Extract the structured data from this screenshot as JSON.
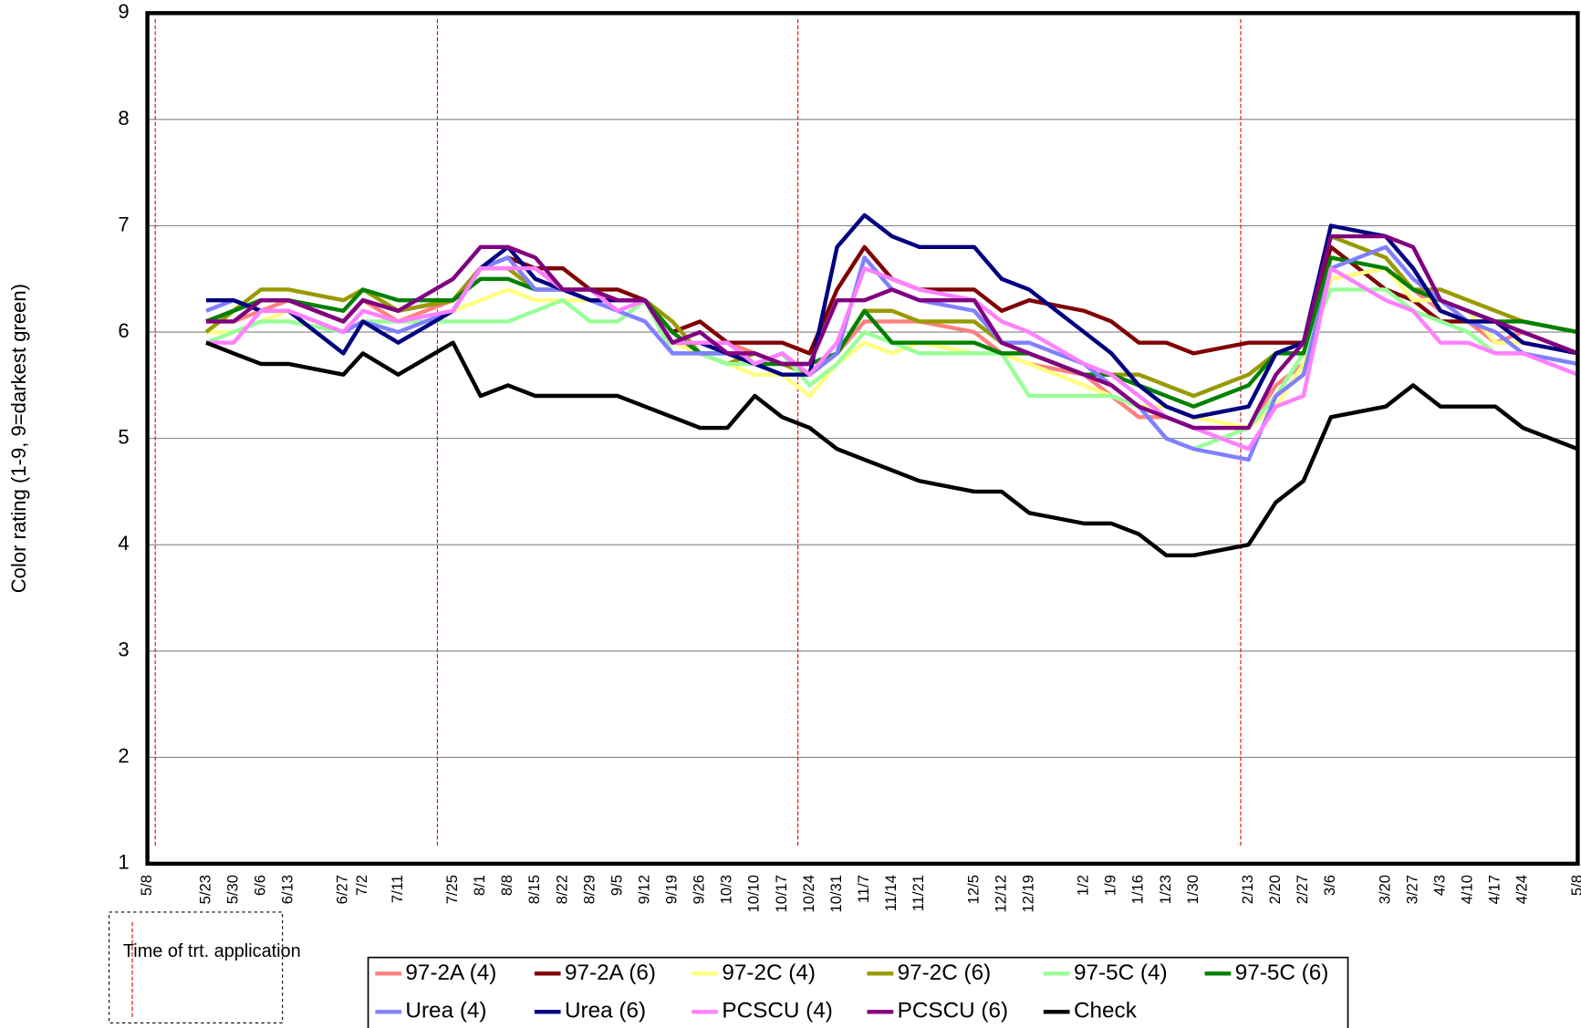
{
  "chart_data": {
    "type": "line",
    "y_label": "Color rating (1-9, 9=darkest green)",
    "ylim": [
      1,
      9
    ],
    "yticks": [
      1,
      2,
      3,
      4,
      5,
      6,
      7,
      8,
      9
    ],
    "grid": true,
    "categories": [
      "5/8",
      "5/23",
      "5/30",
      "6/6",
      "6/13",
      "6/27",
      "7/2",
      "7/11",
      "7/25",
      "8/1",
      "8/8",
      "8/15",
      "8/22",
      "8/29",
      "9/5",
      "9/12",
      "9/19",
      "9/26",
      "10/3",
      "10/10",
      "10/17",
      "10/24",
      "10/31",
      "11/7",
      "11/14",
      "11/21",
      "12/5",
      "12/12",
      "12/19",
      "1/2",
      "1/9",
      "1/16",
      "1/23",
      "1/30",
      "2/13",
      "2/20",
      "2/27",
      "3/6",
      "3/20",
      "3/27",
      "4/3",
      "4/10",
      "4/17",
      "4/24",
      "5/8"
    ],
    "application_dates": [
      "5/10",
      "7/21",
      "10/21",
      "2/11"
    ],
    "application_color": "#e00000",
    "application_label": "Time of trt. application",
    "series": [
      {
        "name": "97-2A (4)",
        "color": "#ff8080",
        "values": [
          null,
          6.1,
          6.1,
          6.2,
          6.3,
          6.1,
          6.3,
          6.1,
          6.3,
          6.6,
          6.6,
          6.6,
          6.4,
          6.4,
          6.3,
          6.3,
          5.9,
          5.9,
          5.9,
          5.8,
          5.7,
          5.6,
          5.8,
          6.1,
          6.1,
          6.1,
          6.0,
          5.8,
          5.7,
          5.6,
          5.4,
          5.2,
          5.2,
          5.1,
          5.1,
          5.5,
          5.7,
          6.5,
          6.6,
          6.4,
          6.2,
          6.1,
          5.9,
          6.0,
          5.8
        ]
      },
      {
        "name": "97-2A (6)",
        "color": "#800000",
        "values": [
          null,
          6.1,
          6.2,
          6.3,
          6.3,
          6.1,
          6.3,
          6.2,
          6.3,
          6.6,
          6.7,
          6.6,
          6.6,
          6.4,
          6.4,
          6.3,
          6.0,
          6.1,
          5.9,
          5.9,
          5.9,
          5.8,
          6.4,
          6.8,
          6.5,
          6.4,
          6.4,
          6.2,
          6.3,
          6.2,
          6.1,
          5.9,
          5.9,
          5.8,
          5.9,
          5.9,
          5.9,
          6.8,
          6.4,
          6.3,
          6.1,
          6.1,
          6.1,
          6.0,
          5.8
        ]
      },
      {
        "name": "97-2C (4)",
        "color": "#ffff80",
        "values": [
          null,
          6.0,
          6.0,
          6.1,
          6.2,
          6.0,
          6.1,
          6.1,
          6.2,
          6.3,
          6.4,
          6.3,
          6.3,
          6.3,
          6.3,
          6.3,
          5.9,
          5.8,
          5.7,
          5.6,
          5.6,
          5.4,
          5.7,
          5.9,
          5.8,
          5.9,
          5.8,
          5.8,
          5.7,
          5.5,
          5.4,
          5.3,
          5.3,
          5.2,
          5.1,
          5.3,
          5.7,
          6.5,
          6.6,
          6.3,
          6.3,
          6.2,
          5.9,
          5.9,
          5.8
        ]
      },
      {
        "name": "97-2C (6)",
        "color": "#999900",
        "values": [
          null,
          6.0,
          6.2,
          6.4,
          6.4,
          6.3,
          6.4,
          6.2,
          6.3,
          6.6,
          6.6,
          6.4,
          6.4,
          6.4,
          6.3,
          6.3,
          6.1,
          5.8,
          5.7,
          5.8,
          5.7,
          5.6,
          5.8,
          6.2,
          6.2,
          6.1,
          6.1,
          5.9,
          5.8,
          5.6,
          5.6,
          5.6,
          5.5,
          5.4,
          5.6,
          5.8,
          5.9,
          6.9,
          6.7,
          6.4,
          6.4,
          6.3,
          6.2,
          6.1,
          6.0
        ]
      },
      {
        "name": "97-5C (4)",
        "color": "#99ff99",
        "values": [
          null,
          5.9,
          6.0,
          6.1,
          6.1,
          6.0,
          6.1,
          6.1,
          6.1,
          6.1,
          6.1,
          6.2,
          6.3,
          6.1,
          6.1,
          6.3,
          5.8,
          5.8,
          5.7,
          5.7,
          5.8,
          5.5,
          5.7,
          6.0,
          5.9,
          5.8,
          5.8,
          5.8,
          5.4,
          5.4,
          5.4,
          5.3,
          5.0,
          4.9,
          5.1,
          5.4,
          5.8,
          6.4,
          6.4,
          6.2,
          6.1,
          6.0,
          5.8,
          5.8,
          5.7
        ]
      },
      {
        "name": "97-5C (6)",
        "color": "#008000",
        "values": [
          null,
          6.1,
          6.2,
          6.3,
          6.3,
          6.2,
          6.4,
          6.3,
          6.3,
          6.5,
          6.5,
          6.4,
          6.4,
          6.4,
          6.3,
          6.3,
          6.0,
          5.8,
          5.8,
          5.7,
          5.7,
          5.7,
          5.8,
          6.2,
          5.9,
          5.9,
          5.9,
          5.8,
          5.8,
          5.6,
          5.6,
          5.5,
          5.4,
          5.3,
          5.5,
          5.8,
          5.8,
          6.7,
          6.6,
          6.4,
          6.3,
          6.2,
          6.1,
          6.1,
          6.0
        ]
      },
      {
        "name": "Urea (4)",
        "color": "#8080ff",
        "values": [
          null,
          6.2,
          6.3,
          6.2,
          6.2,
          6.0,
          6.1,
          6.0,
          6.2,
          6.6,
          6.7,
          6.4,
          6.4,
          6.3,
          6.2,
          6.1,
          5.8,
          5.8,
          5.8,
          5.7,
          5.8,
          5.6,
          5.8,
          6.7,
          6.4,
          6.3,
          6.2,
          5.9,
          5.9,
          5.7,
          5.5,
          5.3,
          5.0,
          4.9,
          4.8,
          5.4,
          5.6,
          6.6,
          6.8,
          6.5,
          6.3,
          6.1,
          6.0,
          5.8,
          5.7
        ]
      },
      {
        "name": "Urea (6)",
        "color": "#000080",
        "values": [
          null,
          6.3,
          6.3,
          6.2,
          6.2,
          5.8,
          6.1,
          5.9,
          6.2,
          6.6,
          6.8,
          6.5,
          6.4,
          6.3,
          6.3,
          6.3,
          5.9,
          5.9,
          5.8,
          5.7,
          5.6,
          5.6,
          6.8,
          7.1,
          6.9,
          6.8,
          6.8,
          6.5,
          6.4,
          6.0,
          5.8,
          5.5,
          5.3,
          5.2,
          5.3,
          5.8,
          5.9,
          7.0,
          6.9,
          6.6,
          6.2,
          6.1,
          6.1,
          5.9,
          5.8
        ]
      },
      {
        "name": "PCSCU (4)",
        "color": "#ff80ff",
        "values": [
          null,
          5.9,
          5.9,
          6.2,
          6.2,
          6.0,
          6.2,
          6.1,
          6.2,
          6.6,
          6.6,
          6.6,
          6.4,
          6.4,
          6.2,
          6.3,
          5.9,
          5.9,
          5.9,
          5.7,
          5.8,
          5.6,
          5.9,
          6.6,
          6.5,
          6.4,
          6.3,
          6.1,
          6.0,
          5.7,
          5.6,
          5.4,
          5.2,
          5.1,
          4.9,
          5.3,
          5.4,
          6.6,
          6.3,
          6.2,
          5.9,
          5.9,
          5.8,
          5.8,
          5.6
        ]
      },
      {
        "name": "PCSCU (6)",
        "color": "#800080",
        "values": [
          null,
          6.1,
          6.1,
          6.3,
          6.3,
          6.1,
          6.3,
          6.2,
          6.5,
          6.8,
          6.8,
          6.7,
          6.4,
          6.4,
          6.3,
          6.3,
          5.9,
          6.0,
          5.8,
          5.8,
          5.7,
          5.7,
          6.3,
          6.3,
          6.4,
          6.3,
          6.3,
          5.9,
          5.8,
          5.6,
          5.5,
          5.3,
          5.2,
          5.1,
          5.1,
          5.6,
          5.9,
          6.9,
          6.9,
          6.8,
          6.3,
          6.2,
          6.1,
          6.0,
          5.8
        ]
      },
      {
        "name": "Check",
        "color": "#000000",
        "values": [
          null,
          5.9,
          5.8,
          5.7,
          5.7,
          5.6,
          5.8,
          5.6,
          5.9,
          5.4,
          5.5,
          5.4,
          5.4,
          5.4,
          5.4,
          5.3,
          5.2,
          5.1,
          5.1,
          5.4,
          5.2,
          5.1,
          4.9,
          4.8,
          4.7,
          4.6,
          4.5,
          4.5,
          4.3,
          4.2,
          4.2,
          4.1,
          3.9,
          3.9,
          4.0,
          4.4,
          4.6,
          5.2,
          5.3,
          5.5,
          5.3,
          5.3,
          5.3,
          5.1,
          4.9
        ]
      }
    ]
  }
}
